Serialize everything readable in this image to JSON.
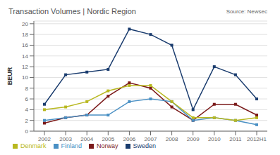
{
  "chart_data": {
    "type": "line",
    "title": "Transaction Volumes  |  Nordic Region",
    "annotation": "Source: Newsec",
    "ylabel": "BEUR",
    "categories": [
      "2002",
      "2003",
      "2004",
      "2005",
      "2006",
      "2007",
      "2008",
      "2009",
      "2010",
      "2011",
      "2012H1"
    ],
    "series": [
      {
        "name": "Sweden",
        "color": "#1a3c6e",
        "values": [
          5.0,
          10.5,
          11.0,
          11.5,
          19.0,
          18.0,
          16.0,
          4.0,
          12.0,
          10.5,
          6.0
        ]
      },
      {
        "name": "Norway",
        "color": "#7b1a1a",
        "values": [
          1.5,
          2.5,
          3.0,
          6.5,
          9.0,
          8.0,
          4.5,
          2.0,
          5.0,
          5.0,
          3.0
        ]
      },
      {
        "name": "Finland",
        "color": "#4a90c4",
        "values": [
          2.0,
          2.5,
          3.0,
          3.0,
          5.5,
          6.0,
          5.5,
          2.0,
          2.5,
          2.0,
          1.2
        ]
      },
      {
        "name": "Denmark",
        "color": "#b8b820",
        "values": [
          4.0,
          4.5,
          5.5,
          7.5,
          8.5,
          8.5,
          5.5,
          2.5,
          2.5,
          2.0,
          2.5
        ]
      }
    ],
    "ylim": [
      0,
      20.5
    ],
    "yticks": [
      0,
      2,
      4,
      6,
      8,
      10,
      12,
      14,
      16,
      18,
      20
    ],
    "grid": true,
    "legend": "bottom",
    "marker": "square",
    "line_style": "solid"
  }
}
